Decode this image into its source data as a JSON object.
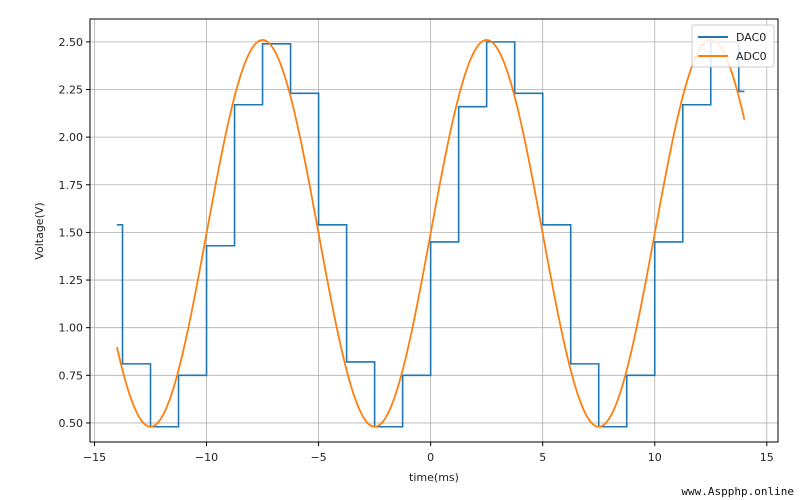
{
  "chart_data": {
    "type": "line",
    "xlabel": "time(ms)",
    "ylabel": "Voltage(V)",
    "xlim": [
      -15.2,
      15.5
    ],
    "ylim": [
      0.4,
      2.62
    ],
    "xticks": [
      -15,
      -10,
      -5,
      0,
      5,
      10,
      15
    ],
    "xtick_labels": [
      "−15",
      "−10",
      "−5",
      "0",
      "5",
      "10",
      "15"
    ],
    "yticks": [
      0.5,
      0.75,
      1.0,
      1.25,
      1.5,
      1.75,
      2.0,
      2.25,
      2.5
    ],
    "ytick_labels": [
      "0.50",
      "0.75",
      "1.00",
      "1.25",
      "1.50",
      "1.75",
      "2.00",
      "2.25",
      "2.50"
    ],
    "grid": true,
    "legend": "top-right",
    "series": [
      {
        "name": "DAC0",
        "color": "#1f77b4",
        "step": true,
        "x": [
          -14.0,
          -13.75,
          -12.5,
          -11.25,
          -10.0,
          -8.75,
          -7.5,
          -6.25,
          -5.0,
          -3.75,
          -2.5,
          -1.25,
          0.0,
          1.25,
          2.5,
          3.75,
          5.0,
          6.25,
          7.5,
          8.75,
          10.0,
          11.25,
          12.5,
          13.75
        ],
        "y": [
          1.54,
          0.81,
          0.48,
          0.75,
          1.43,
          2.17,
          2.49,
          2.23,
          1.54,
          0.82,
          0.48,
          0.75,
          1.45,
          2.16,
          2.5,
          2.23,
          1.54,
          0.81,
          0.48,
          0.75,
          1.45,
          2.17,
          2.5,
          2.24
        ],
        "x_end": 14.0
      },
      {
        "name": "ADC0",
        "color": "#ff7f0e",
        "sine": {
          "offset": 1.495,
          "amplitude": 1.015,
          "period_ms": 10.0,
          "phase_ms": 0.0
        },
        "x_range": [
          -14.0,
          14.0
        ]
      }
    ]
  },
  "watermark": "www.Aspphp.online"
}
